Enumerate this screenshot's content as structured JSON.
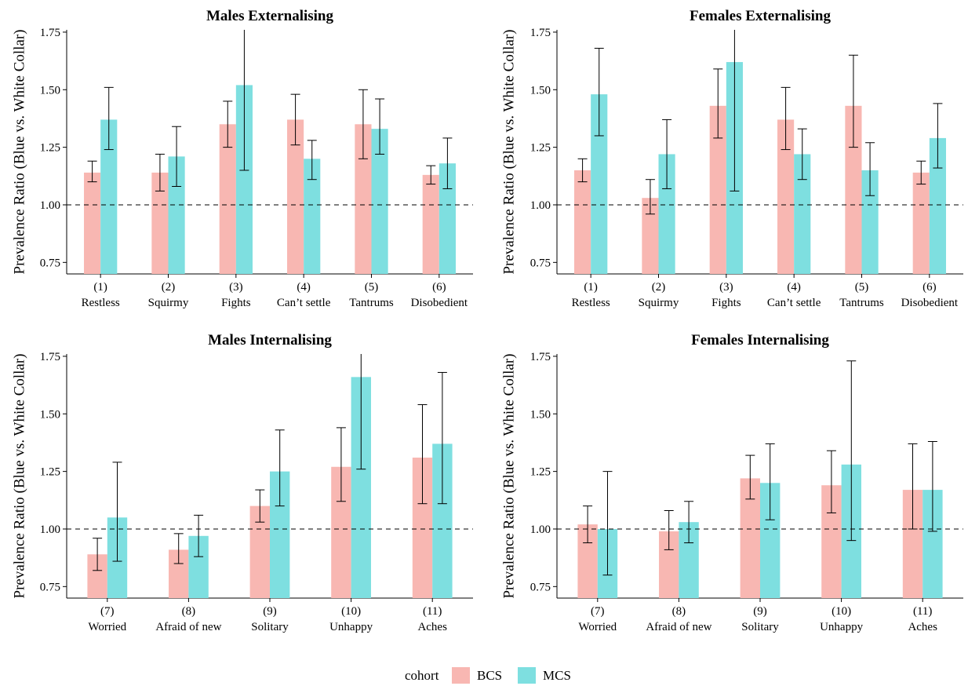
{
  "legend": {
    "title": "cohort",
    "items": [
      {
        "name": "BCS",
        "color": "#F8B7B2"
      },
      {
        "name": "MCS",
        "color": "#7EDFE0"
      }
    ]
  },
  "chart_data": [
    {
      "type": "bar",
      "title": "Males Externalising",
      "ylabel": "Prevalence Ratio (Blue vs. White Collar)",
      "ylim": [
        0.7,
        1.76
      ],
      "yticks": [
        0.75,
        1.0,
        1.25,
        1.5,
        1.75
      ],
      "ytick_labels": [
        "0.75",
        "1.00",
        "1.25",
        "1.50",
        "1.75"
      ],
      "reference_line": 1.0,
      "categories": [
        [
          "(1)",
          "Restless"
        ],
        [
          "(2)",
          "Squirmy"
        ],
        [
          "(3)",
          "Fights"
        ],
        [
          "(4)",
          "Can’t settle"
        ],
        [
          "(5)",
          "Tantrums"
        ],
        [
          "(6)",
          "Disobedient"
        ]
      ],
      "series": [
        {
          "name": "BCS",
          "values": [
            1.14,
            1.14,
            1.35,
            1.37,
            1.35,
            1.13
          ],
          "lower": [
            1.1,
            1.06,
            1.25,
            1.26,
            1.2,
            1.09
          ],
          "upper": [
            1.19,
            1.22,
            1.45,
            1.48,
            1.5,
            1.17
          ]
        },
        {
          "name": "MCS",
          "values": [
            1.37,
            1.21,
            1.52,
            1.2,
            1.33,
            1.18
          ],
          "lower": [
            1.24,
            1.08,
            1.15,
            1.11,
            1.22,
            1.07
          ],
          "upper": [
            1.51,
            1.34,
            1.76,
            1.28,
            1.46,
            1.29
          ]
        }
      ]
    },
    {
      "type": "bar",
      "title": "Females Externalising",
      "ylabel": "Prevalence Ratio (Blue vs. White Collar)",
      "ylim": [
        0.7,
        1.76
      ],
      "yticks": [
        0.75,
        1.0,
        1.25,
        1.5,
        1.75
      ],
      "ytick_labels": [
        "0.75",
        "1.00",
        "1.25",
        "1.50",
        "1.75"
      ],
      "reference_line": 1.0,
      "categories": [
        [
          "(1)",
          "Restless"
        ],
        [
          "(2)",
          "Squirmy"
        ],
        [
          "(3)",
          "Fights"
        ],
        [
          "(4)",
          "Can’t settle"
        ],
        [
          "(5)",
          "Tantrums"
        ],
        [
          "(6)",
          "Disobedient"
        ]
      ],
      "series": [
        {
          "name": "BCS",
          "values": [
            1.15,
            1.03,
            1.43,
            1.37,
            1.43,
            1.14
          ],
          "lower": [
            1.1,
            0.96,
            1.29,
            1.24,
            1.25,
            1.09
          ],
          "upper": [
            1.2,
            1.11,
            1.59,
            1.51,
            1.65,
            1.19
          ]
        },
        {
          "name": "MCS",
          "values": [
            1.48,
            1.22,
            1.62,
            1.22,
            1.15,
            1.29
          ],
          "lower": [
            1.3,
            1.07,
            1.06,
            1.11,
            1.04,
            1.16
          ],
          "upper": [
            1.68,
            1.37,
            1.76,
            1.33,
            1.27,
            1.44
          ]
        }
      ]
    },
    {
      "type": "bar",
      "title": "Males Internalising",
      "ylabel": "Prevalence Ratio (Blue vs. White Collar)",
      "ylim": [
        0.7,
        1.76
      ],
      "yticks": [
        0.75,
        1.0,
        1.25,
        1.5,
        1.75
      ],
      "ytick_labels": [
        "0.75",
        "1.00",
        "1.25",
        "1.50",
        "1.75"
      ],
      "reference_line": 1.0,
      "categories": [
        [
          "(7)",
          "Worried"
        ],
        [
          "(8)",
          "Afraid of new"
        ],
        [
          "(9)",
          "Solitary"
        ],
        [
          "(10)",
          "Unhappy"
        ],
        [
          "(11)",
          "Aches"
        ]
      ],
      "series": [
        {
          "name": "BCS",
          "values": [
            0.89,
            0.91,
            1.1,
            1.27,
            1.31
          ],
          "lower": [
            0.82,
            0.85,
            1.03,
            1.12,
            1.11
          ],
          "upper": [
            0.96,
            0.98,
            1.17,
            1.44,
            1.54
          ]
        },
        {
          "name": "MCS",
          "values": [
            1.05,
            0.97,
            1.25,
            1.66,
            1.37
          ],
          "lower": [
            0.86,
            0.88,
            1.1,
            1.26,
            1.11
          ],
          "upper": [
            1.29,
            1.06,
            1.43,
            1.76,
            1.68
          ]
        }
      ]
    },
    {
      "type": "bar",
      "title": "Females Internalising",
      "ylabel": "Prevalence Ratio (Blue vs. White Collar)",
      "ylim": [
        0.7,
        1.76
      ],
      "yticks": [
        0.75,
        1.0,
        1.25,
        1.5,
        1.75
      ],
      "ytick_labels": [
        "0.75",
        "1.00",
        "1.25",
        "1.50",
        "1.75"
      ],
      "reference_line": 1.0,
      "categories": [
        [
          "(7)",
          "Worried"
        ],
        [
          "(8)",
          "Afraid of new"
        ],
        [
          "(9)",
          "Solitary"
        ],
        [
          "(10)",
          "Unhappy"
        ],
        [
          "(11)",
          "Aches"
        ]
      ],
      "series": [
        {
          "name": "BCS",
          "values": [
            1.02,
            0.99,
            1.22,
            1.19,
            1.17
          ],
          "lower": [
            0.94,
            0.91,
            1.13,
            1.07,
            1.0
          ],
          "upper": [
            1.1,
            1.08,
            1.32,
            1.34,
            1.37
          ]
        },
        {
          "name": "MCS",
          "values": [
            1.0,
            1.03,
            1.2,
            1.28,
            1.17
          ],
          "lower": [
            0.8,
            0.94,
            1.04,
            0.95,
            0.99
          ],
          "upper": [
            1.25,
            1.12,
            1.37,
            1.73,
            1.38
          ]
        }
      ]
    }
  ]
}
